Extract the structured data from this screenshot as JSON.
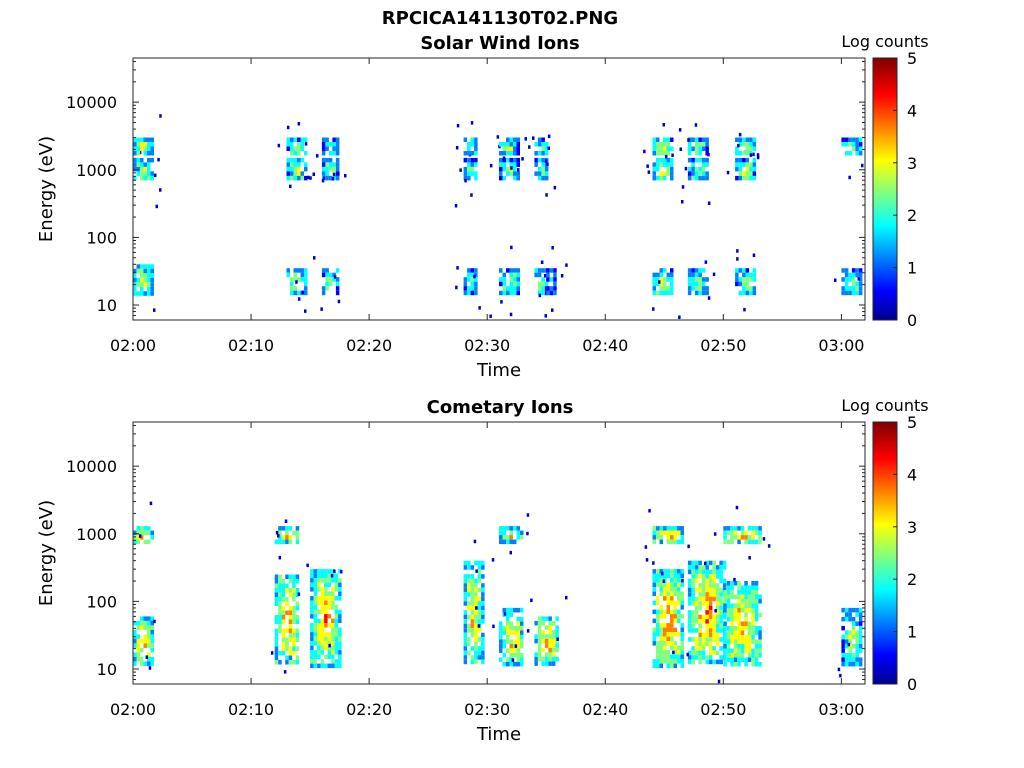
{
  "figure_title": "RPCICA141130T02.PNG",
  "colormap": [
    "#00008f",
    "#0000ff",
    "#0080ff",
    "#00ffff",
    "#80ff80",
    "#ffff00",
    "#ff8000",
    "#ff0000",
    "#800000"
  ],
  "chart_data": [
    {
      "type": "heatmap",
      "title": "Solar Wind Ions",
      "xlabel": "Time",
      "ylabel": "Energy (eV)",
      "colorbar_label": "Log counts",
      "colorbar_range": [
        0,
        5
      ],
      "colorbar_ticks": [
        "0",
        "1",
        "2",
        "3",
        "4",
        "5"
      ],
      "x_range": [
        "02:00",
        "03:02"
      ],
      "x_ticks": [
        "02:00",
        "02:10",
        "02:20",
        "02:30",
        "02:40",
        "02:50",
        "03:00"
      ],
      "y_scale": "log",
      "y_range": [
        6,
        45000
      ],
      "y_ticks": [
        "10",
        "100",
        "1000",
        "10000"
      ],
      "bursts": [
        {
          "t": "02:00",
          "dur_min": 1.5,
          "level": 3.2,
          "bands": [
            [
              15,
              40
            ],
            [
              700,
              1500
            ],
            [
              1700,
              3000
            ]
          ]
        },
        {
          "t": "02:13",
          "dur_min": 1.5,
          "level": 3.0,
          "bands": [
            [
              15,
              35
            ],
            [
              700,
              1500
            ],
            [
              1700,
              3000
            ]
          ]
        },
        {
          "t": "02:16",
          "dur_min": 1.2,
          "level": 2.6,
          "bands": [
            [
              15,
              35
            ],
            [
              700,
              1500
            ],
            [
              1700,
              3000
            ]
          ]
        },
        {
          "t": "02:28",
          "dur_min": 1.0,
          "level": 2.4,
          "bands": [
            [
              15,
              35
            ],
            [
              700,
              1500
            ],
            [
              1700,
              3000
            ]
          ]
        },
        {
          "t": "02:31",
          "dur_min": 1.5,
          "level": 2.8,
          "bands": [
            [
              15,
              35
            ],
            [
              700,
              1500
            ],
            [
              1700,
              3000
            ]
          ]
        },
        {
          "t": "02:34",
          "dur_min": 1.0,
          "level": 2.5,
          "bands": [
            [
              15,
              35
            ],
            [
              700,
              1500
            ],
            [
              1700,
              3000
            ]
          ]
        },
        {
          "t": "02:35",
          "dur_min": 0.8,
          "level": 1.8,
          "bands": [
            [
              15,
              35
            ]
          ]
        },
        {
          "t": "02:44",
          "dur_min": 1.5,
          "level": 3.2,
          "bands": [
            [
              15,
              35
            ],
            [
              700,
              1500
            ],
            [
              1700,
              3000
            ]
          ]
        },
        {
          "t": "02:47",
          "dur_min": 1.5,
          "level": 2.8,
          "bands": [
            [
              15,
              35
            ],
            [
              700,
              1500
            ],
            [
              1700,
              3000
            ]
          ]
        },
        {
          "t": "02:51",
          "dur_min": 1.5,
          "level": 3.0,
          "bands": [
            [
              15,
              35
            ],
            [
              700,
              1500
            ],
            [
              1700,
              3000
            ]
          ]
        },
        {
          "t": "03:00",
          "dur_min": 1.5,
          "level": 2.5,
          "bands": [
            [
              15,
              35
            ],
            [
              1700,
              3000
            ]
          ]
        }
      ]
    },
    {
      "type": "heatmap",
      "title": "Cometary Ions",
      "xlabel": "Time",
      "ylabel": "Energy (eV)",
      "colorbar_label": "Log counts",
      "colorbar_range": [
        0,
        5
      ],
      "colorbar_ticks": [
        "0",
        "1",
        "2",
        "3",
        "4",
        "5"
      ],
      "x_range": [
        "02:00",
        "03:02"
      ],
      "x_ticks": [
        "02:00",
        "02:10",
        "02:20",
        "02:30",
        "02:40",
        "02:50",
        "03:00"
      ],
      "y_scale": "log",
      "y_range": [
        6,
        45000
      ],
      "y_ticks": [
        "10",
        "100",
        "1000",
        "10000"
      ],
      "bursts": [
        {
          "t": "02:00",
          "dur_min": 1.5,
          "level": 3.8,
          "bands": [
            [
              12,
              60
            ],
            [
              800,
              1300
            ]
          ]
        },
        {
          "t": "02:12",
          "dur_min": 2.0,
          "level": 3.8,
          "bands": [
            [
              12,
              250
            ],
            [
              800,
              1300
            ]
          ]
        },
        {
          "t": "02:15",
          "dur_min": 2.5,
          "level": 3.8,
          "bands": [
            [
              12,
              300
            ]
          ]
        },
        {
          "t": "02:28",
          "dur_min": 1.5,
          "level": 3.6,
          "bands": [
            [
              12,
              400
            ]
          ]
        },
        {
          "t": "02:31",
          "dur_min": 2.0,
          "level": 3.6,
          "bands": [
            [
              12,
              80
            ],
            [
              800,
              1300
            ]
          ]
        },
        {
          "t": "02:34",
          "dur_min": 2.0,
          "level": 3.8,
          "bands": [
            [
              12,
              60
            ]
          ]
        },
        {
          "t": "02:44",
          "dur_min": 2.5,
          "level": 4.0,
          "bands": [
            [
              12,
              300
            ],
            [
              800,
              1300
            ]
          ]
        },
        {
          "t": "02:47",
          "dur_min": 3.0,
          "level": 4.0,
          "bands": [
            [
              12,
              400
            ]
          ]
        },
        {
          "t": "02:50",
          "dur_min": 3.0,
          "level": 3.8,
          "bands": [
            [
              12,
              200
            ],
            [
              800,
              1300
            ]
          ]
        },
        {
          "t": "03:00",
          "dur_min": 1.5,
          "level": 3.0,
          "bands": [
            [
              12,
              80
            ]
          ]
        }
      ]
    }
  ]
}
